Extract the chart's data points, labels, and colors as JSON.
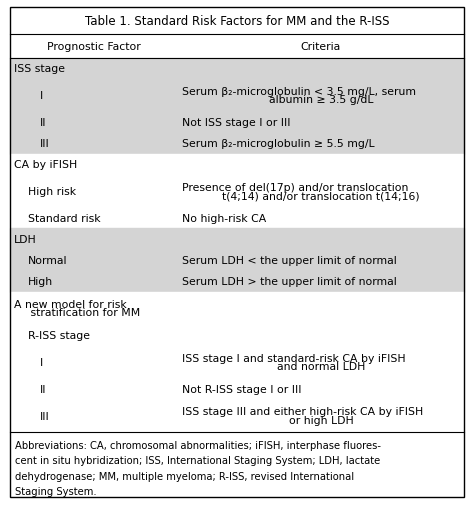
{
  "title_bold": "Table 1.",
  "title_normal": " Standard Risk Factors for MM and the R-ISS",
  "col1_header": "Prognostic Factor",
  "col2_header": "Criteria",
  "background_color": "#ffffff",
  "shaded_color": "#d4d4d4",
  "border_color": "#000000",
  "rows": [
    {
      "col1": "ISS stage",
      "col2": "",
      "indent1": 0,
      "shaded": true,
      "col2_lines": []
    },
    {
      "col1": "I",
      "col2": "",
      "indent1": 2,
      "shaded": true,
      "col2_lines": [
        "Serum β₂-microglobulin < 3.5 mg/L, serum",
        "albumin ≥ 3.5 g/dL"
      ]
    },
    {
      "col1": "II",
      "col2": "",
      "indent1": 2,
      "shaded": true,
      "col2_lines": [
        "Not ISS stage I or III"
      ]
    },
    {
      "col1": "III",
      "col2": "",
      "indent1": 2,
      "shaded": true,
      "col2_lines": [
        "Serum β₂-microglobulin ≥ 5.5 mg/L"
      ]
    },
    {
      "col1": "CA by iFISH",
      "col2": "",
      "indent1": 0,
      "shaded": false,
      "col2_lines": []
    },
    {
      "col1": "High risk",
      "col2": "",
      "indent1": 1,
      "shaded": false,
      "col2_lines": [
        "Presence of del(17p) and/or translocation",
        "t(4;14) and/or translocation t(14;16)"
      ]
    },
    {
      "col1": "Standard risk",
      "col2": "",
      "indent1": 1,
      "shaded": false,
      "col2_lines": [
        "No high-risk CA"
      ]
    },
    {
      "col1": "LDH",
      "col2": "",
      "indent1": 0,
      "shaded": true,
      "col2_lines": []
    },
    {
      "col1": "Normal",
      "col2": "",
      "indent1": 1,
      "shaded": true,
      "col2_lines": [
        "Serum LDH < the upper limit of normal"
      ]
    },
    {
      "col1": "High",
      "col2": "",
      "indent1": 1,
      "shaded": true,
      "col2_lines": [
        "Serum LDH > the upper limit of normal"
      ]
    },
    {
      "col1": "A new model for risk",
      "col2": "",
      "indent1": 0,
      "shaded": false,
      "col2_lines": [],
      "col1_line2": "   stratification for MM"
    },
    {
      "col1": "R-ISS stage",
      "col2": "",
      "indent1": 1,
      "shaded": false,
      "col2_lines": []
    },
    {
      "col1": "I",
      "col2": "",
      "indent1": 2,
      "shaded": false,
      "col2_lines": [
        "ISS stage I and standard-risk CA by iFISH",
        "and normal LDH"
      ]
    },
    {
      "col1": "II",
      "col2": "",
      "indent1": 2,
      "shaded": false,
      "col2_lines": [
        "Not R-ISS stage I or III"
      ]
    },
    {
      "col1": "III",
      "col2": "",
      "indent1": 2,
      "shaded": false,
      "col2_lines": [
        "ISS stage III and either high-risk CA by iFISH",
        "or high LDH"
      ]
    }
  ],
  "footnote_lines": [
    "Abbreviations: CA, chromosomal abnormalities; iFISH, interphase fluores-",
    "cent in situ hybridization; ISS, International Staging System; LDH, lactate",
    "dehydrogenase; MM, multiple myeloma; R-ISS, revised International",
    "Staging System."
  ],
  "font_size": 7.8,
  "title_font_size": 8.5,
  "footnote_font_size": 7.2
}
